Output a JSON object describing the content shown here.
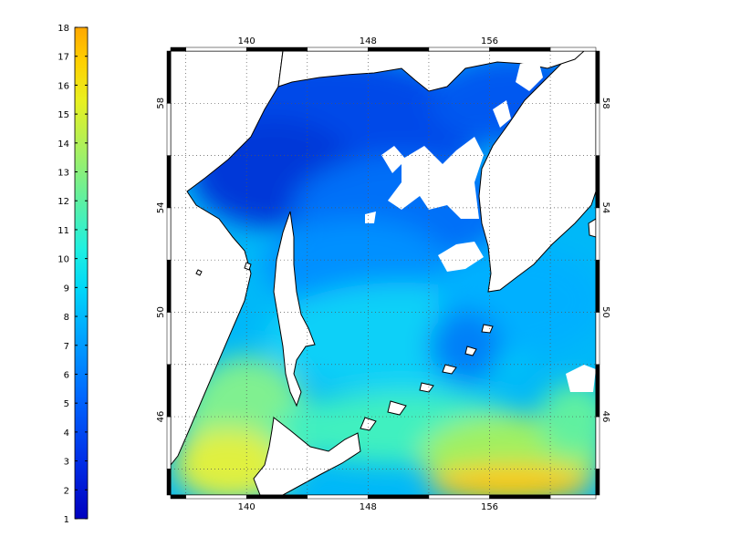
{
  "colorbar": {
    "ticks": [
      "1",
      "2",
      "3",
      "4",
      "5",
      "6",
      "7",
      "8",
      "9",
      "10",
      "11",
      "12",
      "13",
      "14",
      "15",
      "16",
      "17",
      "18"
    ],
    "min": 1,
    "max": 18,
    "colors": [
      "#0000bf",
      "#0028e0",
      "#0050f5",
      "#0078ff",
      "#00a0ff",
      "#00c8ff",
      "#10e8f0",
      "#40f0c0",
      "#70f090",
      "#a0f060",
      "#d0f030",
      "#f0e000",
      "#f8c000",
      "#ffa800"
    ]
  },
  "map": {
    "lon_ticks_top": [
      "140",
      "148",
      "156"
    ],
    "lon_ticks_bottom": [
      "140",
      "148",
      "156"
    ],
    "lat_ticks_left": [
      "58",
      "54",
      "50",
      "46"
    ],
    "lat_ticks_right": [
      "58",
      "54",
      "50",
      "46"
    ],
    "lon_range": [
      135,
      163
    ],
    "lat_range": [
      43,
      60
    ],
    "grid": true,
    "land_color": "#ffffff",
    "coast_color": "#000000"
  }
}
